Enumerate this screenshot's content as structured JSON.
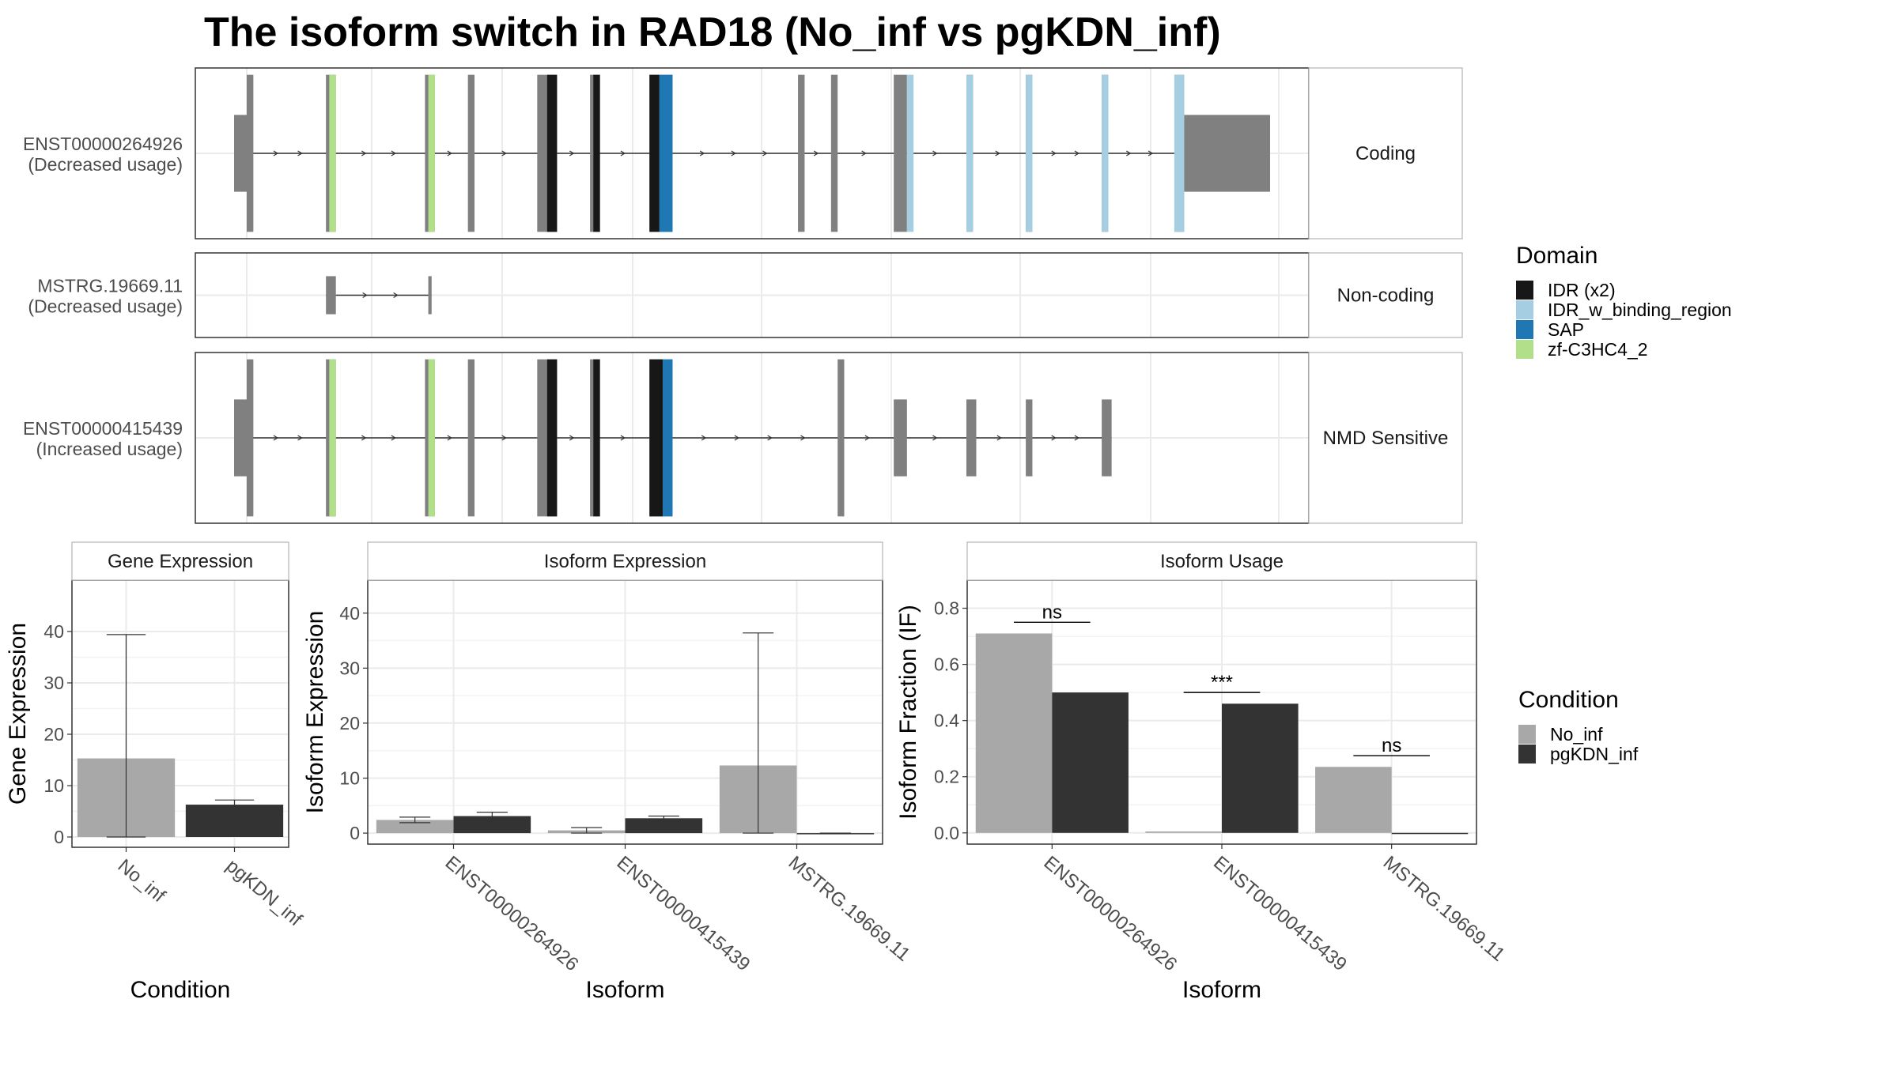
{
  "title": "The isoform switch in RAD18 (No_inf vs pgKDN_inf)",
  "colors": {
    "exon": "#808080",
    "IDR (x2)": "#171717",
    "IDR_w_binding_region": "#a6cee3",
    "SAP": "#1f78b4",
    "zf-C3HC4_2": "#b2df8a",
    "No_inf": "#a8a8a8",
    "pgKDN_inf": "#333333"
  },
  "legends": {
    "domain_title": "Domain",
    "domain_items": [
      "IDR (x2)",
      "IDR_w_binding_region",
      "SAP",
      "zf-C3HC4_2"
    ],
    "condition_title": "Condition",
    "condition_items": [
      "No_inf",
      "pgKDN_inf"
    ]
  },
  "isoforms": [
    {
      "name": "ENST00000264926",
      "usage": "(Decreased usage)",
      "category": "Coding",
      "exons": [
        [
          0.0,
          0.0,
          "utr"
        ],
        [
          0.0,
          0.01,
          "cds"
        ],
        [
          0.12,
          0.135,
          "cds"
        ],
        [
          0.27,
          0.285,
          "cds"
        ],
        [
          0.335,
          0.345,
          "cds"
        ],
        [
          0.44,
          0.47,
          "cds"
        ],
        [
          0.52,
          0.535,
          "cds"
        ],
        [
          0.61,
          0.645,
          "cds"
        ],
        [
          0.835,
          0.845,
          "cds"
        ],
        [
          0.885,
          0.895,
          "cds"
        ],
        [
          0.98,
          1.0,
          "cds"
        ],
        [
          1.09,
          1.1,
          "cds"
        ],
        [
          1.18,
          1.19,
          "cds"
        ],
        [
          1.295,
          1.305,
          "cds"
        ],
        [
          1.405,
          1.42,
          "cds"
        ],
        [
          1.42,
          1.55,
          "utr"
        ]
      ],
      "domains": [
        [
          0.125,
          0.135,
          "zf-C3HC4_2"
        ],
        [
          0.275,
          0.285,
          "zf-C3HC4_2"
        ],
        [
          0.455,
          0.47,
          "IDR (x2)"
        ],
        [
          0.525,
          0.535,
          "IDR (x2)"
        ],
        [
          0.61,
          0.625,
          "IDR (x2)"
        ],
        [
          0.625,
          0.645,
          "SAP"
        ],
        [
          1.0,
          1.01,
          "IDR_w_binding_region"
        ],
        [
          1.09,
          1.1,
          "IDR_w_binding_region"
        ],
        [
          1.18,
          1.19,
          "IDR_w_binding_region"
        ],
        [
          1.295,
          1.305,
          "IDR_w_binding_region"
        ],
        [
          1.405,
          1.42,
          "IDR_w_binding_region"
        ]
      ]
    },
    {
      "name": "MSTRG.19669.11",
      "usage": "(Decreased usage)",
      "category": "Non-coding",
      "exons": [
        [
          0.12,
          0.135,
          "utr"
        ],
        [
          0.275,
          0.28,
          "utr"
        ]
      ],
      "domains": []
    },
    {
      "name": "ENST00000415439",
      "usage": "(Increased usage)",
      "category": "NMD Sensitive",
      "exons": [
        [
          0.0,
          0.0,
          "utr"
        ],
        [
          0.0,
          0.01,
          "cds"
        ],
        [
          0.12,
          0.135,
          "cds"
        ],
        [
          0.27,
          0.285,
          "cds"
        ],
        [
          0.335,
          0.345,
          "cds"
        ],
        [
          0.44,
          0.47,
          "cds"
        ],
        [
          0.52,
          0.535,
          "cds"
        ],
        [
          0.61,
          0.645,
          "cds"
        ],
        [
          0.895,
          0.905,
          "cds"
        ],
        [
          0.98,
          1.0,
          "utr"
        ],
        [
          1.09,
          1.105,
          "utr"
        ],
        [
          1.18,
          1.19,
          "utr"
        ],
        [
          1.295,
          1.31,
          "utr"
        ]
      ],
      "domains": [
        [
          0.125,
          0.135,
          "zf-C3HC4_2"
        ],
        [
          0.275,
          0.285,
          "zf-C3HC4_2"
        ],
        [
          0.455,
          0.47,
          "IDR (x2)"
        ],
        [
          0.525,
          0.535,
          "IDR (x2)"
        ],
        [
          0.61,
          0.63,
          "IDR (x2)"
        ],
        [
          0.63,
          0.645,
          "SAP"
        ]
      ]
    }
  ],
  "chart_data": [
    {
      "type": "bar",
      "title": "Gene Expression",
      "xlabel": "Condition",
      "ylabel": "Gene Expression",
      "categories": [
        "No_inf",
        "pgKDN_inf"
      ],
      "values": [
        15.3,
        6.3
      ],
      "errors": [
        [
          0,
          39.4
        ],
        [
          5.3,
          7.2
        ]
      ],
      "ylim": [
        -2,
        50
      ],
      "yticks": [
        0,
        10,
        20,
        30,
        40
      ]
    },
    {
      "type": "bar",
      "title": "Isoform Expression",
      "xlabel": "Isoform",
      "ylabel": "Isoform Expression",
      "categories": [
        "ENST00000264926",
        "ENST00000415439",
        "MSTRG.19669.11"
      ],
      "series": [
        {
          "name": "No_inf",
          "values": [
            2.4,
            0.5,
            12.3
          ],
          "errors": [
            [
              1.9,
              2.9
            ],
            [
              0,
              1.0
            ],
            [
              0,
              36.4
            ]
          ]
        },
        {
          "name": "pgKDN_inf",
          "values": [
            3.1,
            2.7,
            0
          ],
          "errors": [
            [
              2.4,
              3.8
            ],
            [
              2.3,
              3.1
            ],
            [
              0,
              0
            ]
          ]
        }
      ],
      "ylim": [
        -2,
        46
      ],
      "yticks": [
        0,
        10,
        20,
        30,
        40
      ]
    },
    {
      "type": "bar",
      "title": "Isoform Usage",
      "xlabel": "Isoform",
      "ylabel": "Isoform Fraction (IF)",
      "categories": [
        "ENST00000264926",
        "ENST00000415439",
        "MSTRG.19669.11"
      ],
      "series": [
        {
          "name": "No_inf",
          "values": [
            0.71,
            0.005,
            0.235
          ]
        },
        {
          "name": "pgKDN_inf",
          "values": [
            0.5,
            0.46,
            0
          ]
        }
      ],
      "significance": [
        "ns",
        "***",
        "ns"
      ],
      "ylim": [
        -0.04,
        0.9
      ],
      "yticks": [
        0.0,
        0.2,
        0.4,
        0.6,
        0.8
      ],
      "ytick_labels": [
        "0.0",
        "0.2",
        "0.4",
        "0.6",
        "0.8"
      ]
    }
  ]
}
